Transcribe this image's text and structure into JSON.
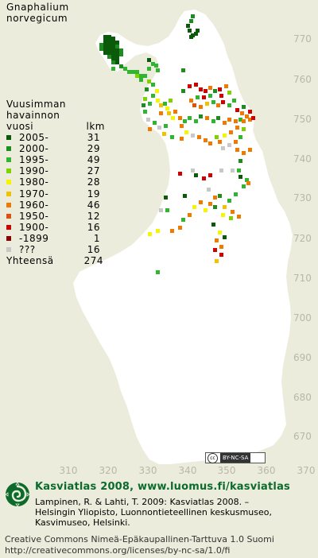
{
  "title": {
    "line1": "Gnaphalium",
    "line2": "norvegicum"
  },
  "legend": {
    "head_line1": "Vuusimman",
    "head_line2": "havainnon",
    "col_period": "vuosi",
    "col_count": "lkm",
    "rows": [
      {
        "period": "2005-",
        "count": "31",
        "color": "#0a5a0a"
      },
      {
        "period": "2000-",
        "count": "29",
        "color": "#1e8c1e"
      },
      {
        "period": "1995-",
        "count": "49",
        "color": "#2fb52f"
      },
      {
        "period": "1990-",
        "count": "27",
        "color": "#7fd100"
      },
      {
        "period": "1980-",
        "count": "28",
        "color": "#f5f500"
      },
      {
        "period": "1970-",
        "count": "19",
        "color": "#f2c200"
      },
      {
        "period": "1960-",
        "count": "46",
        "color": "#f07a00"
      },
      {
        "period": "1950-",
        "count": "12",
        "color": "#e05010"
      },
      {
        "period": "1900-",
        "count": "16",
        "color": "#d00000"
      },
      {
        "period": "-1899",
        "count": "1",
        "color": "#8b0000"
      },
      {
        "period": "???",
        "count": "16",
        "color": "#c8c8c8"
      }
    ],
    "total_label": "Yhteensä",
    "total_count": "274"
  },
  "axes": {
    "y_ticks": [
      "770",
      "760",
      "750",
      "740",
      "730",
      "720",
      "710",
      "700",
      "690",
      "680",
      "670"
    ],
    "x_ticks": [
      "310",
      "320",
      "330",
      "340",
      "350",
      "360",
      "370"
    ]
  },
  "license_badge": {
    "cc": "cc",
    "text": "BY-NC-SA"
  },
  "footer": {
    "title": "Kasviatlas 2008, www.luomus.fi/kasviatlas",
    "cite_line1": "Lampinen, R. & Lahti, T. 2009: Kasviatlas 2008. –",
    "cite_line2": "Helsingin Yliopisto, Luonnontieteellinen keskusmuseo,",
    "cite_line3": "Kasvimuseo, Helsinki.",
    "license_line1": "Creative Commons Nimeä-Epäkaupallinen-Tarttuva 1.0 Suomi",
    "license_line2": "http://creativecommons.org/licenses/by-nc-sa/1.0/fi"
  },
  "colors": {
    "background": "#ececdc",
    "land": "#ffffff",
    "grid_label": "#b8b8a8",
    "brand_green": "#0b6b2b"
  }
}
